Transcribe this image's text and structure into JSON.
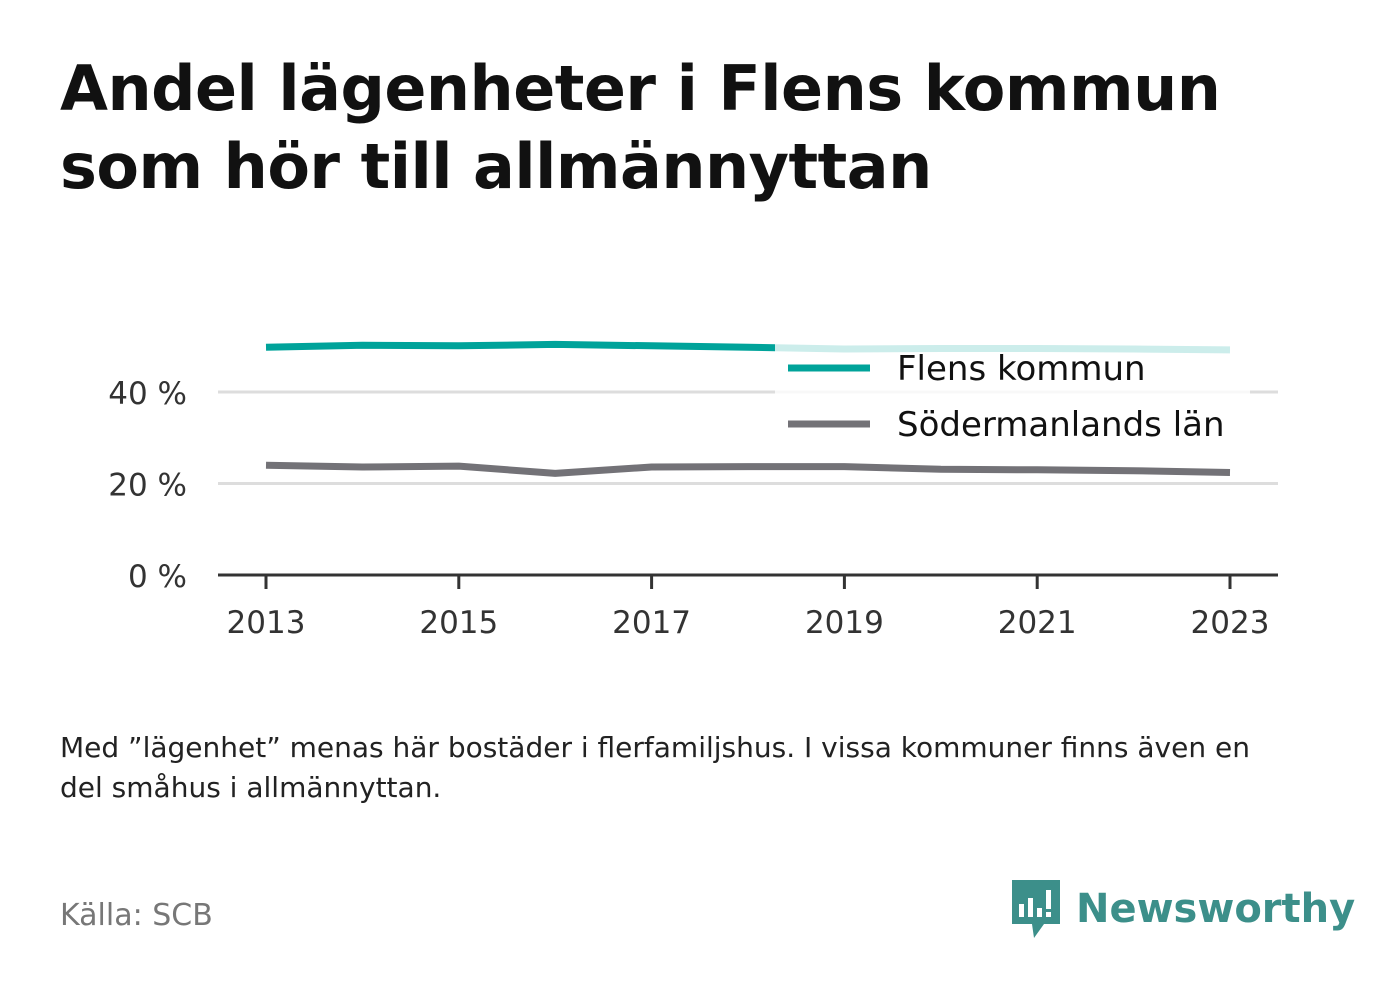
{
  "title": "Andel lägenheter i Flens kommun som hör till allmännyttan",
  "chart_data": {
    "type": "line",
    "x": [
      2013,
      2014,
      2015,
      2016,
      2017,
      2018,
      2019,
      2020,
      2021,
      2022,
      2023
    ],
    "series": [
      {
        "name": "Flens kommun",
        "color": "#00a39a",
        "values": [
          49.8,
          50.2,
          50.1,
          50.4,
          50.1,
          49.8,
          49.4,
          49.5,
          49.5,
          49.4,
          49.2
        ]
      },
      {
        "name": "Södermanlands län",
        "color": "#737277",
        "values": [
          24.0,
          23.6,
          23.8,
          22.2,
          23.6,
          23.7,
          23.7,
          23.1,
          23.0,
          22.8,
          22.4
        ]
      }
    ],
    "y_ticks": [
      {
        "value": 0,
        "label": "0 %"
      },
      {
        "value": 20,
        "label": "20 %"
      },
      {
        "value": 40,
        "label": "40 %"
      }
    ],
    "x_ticks": [
      {
        "value": 2013,
        "label": "2013"
      },
      {
        "value": 2015,
        "label": "2015"
      },
      {
        "value": 2017,
        "label": "2017"
      },
      {
        "value": 2019,
        "label": "2019"
      },
      {
        "value": 2021,
        "label": "2021"
      },
      {
        "value": 2023,
        "label": "2023"
      }
    ],
    "xlim": [
      2012.5,
      2023.5
    ],
    "ylim": [
      0,
      55
    ],
    "grid": true,
    "legend_position": "top-right",
    "xlabel": "",
    "ylabel": ""
  },
  "note": "Med ”lägenhet” menas här bostäder i flerfamiljshus. I vissa kommuner finns även en del småhus i allmännyttan.",
  "source": "Källa: SCB",
  "brand": {
    "name": "Newsworthy",
    "color": "#3c8f8a",
    "icon": "newsworthy-logo-icon"
  }
}
